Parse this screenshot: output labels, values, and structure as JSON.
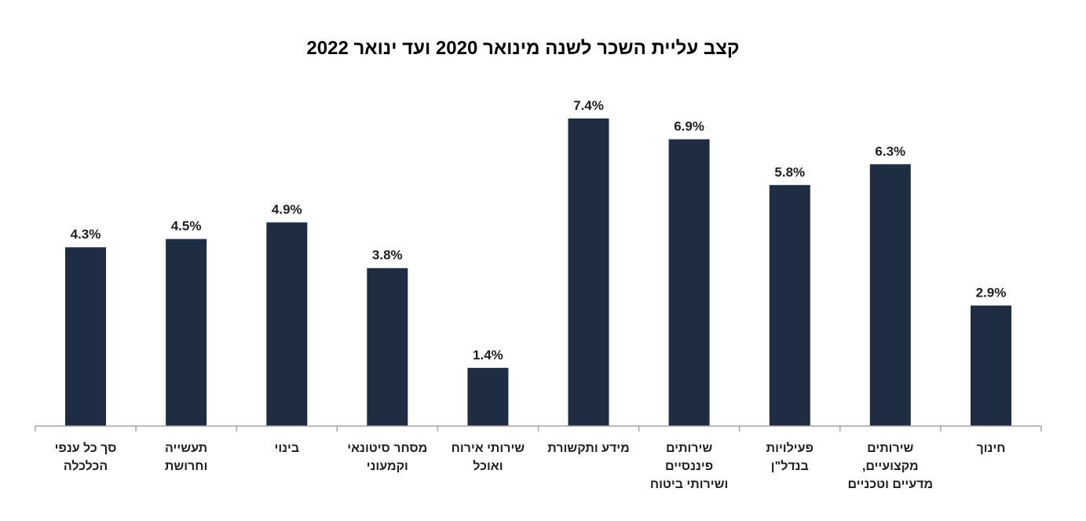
{
  "chart_data": {
    "type": "bar",
    "title": "קצב עליית השכר לשנה מינואר 2020 ועד ינואר 2022",
    "bar_color": "#1e2d42",
    "axis_color": "#a6a6a6",
    "categories": [
      [
        "סך כל ענפי",
        "הכלכלה"
      ],
      [
        "תעשייה",
        "וחרושת"
      ],
      [
        "בינוי"
      ],
      [
        "מסחר סיטונאי",
        "וקמעוני"
      ],
      [
        "שירותי אירוח",
        "ואוכל"
      ],
      [
        "מידע ותקשורת"
      ],
      [
        "שירותים",
        "פיננסיים",
        "ושירותי ביטוח"
      ],
      [
        "פעילויות",
        "בנדל\"ן"
      ],
      [
        "שירותים",
        "מקצועיים,",
        "מדעיים וטכניים"
      ],
      [
        "חינוך"
      ]
    ],
    "values": [
      4.3,
      4.5,
      4.9,
      3.8,
      1.4,
      7.4,
      6.9,
      5.8,
      6.3,
      2.9
    ],
    "value_labels": [
      "4.3%",
      "4.5%",
      "4.9%",
      "3.8%",
      "1.4%",
      "7.4%",
      "6.9%",
      "5.8%",
      "6.3%",
      "2.9%"
    ],
    "ylim": [
      0,
      7.4
    ],
    "grid": false,
    "legend": "none"
  }
}
